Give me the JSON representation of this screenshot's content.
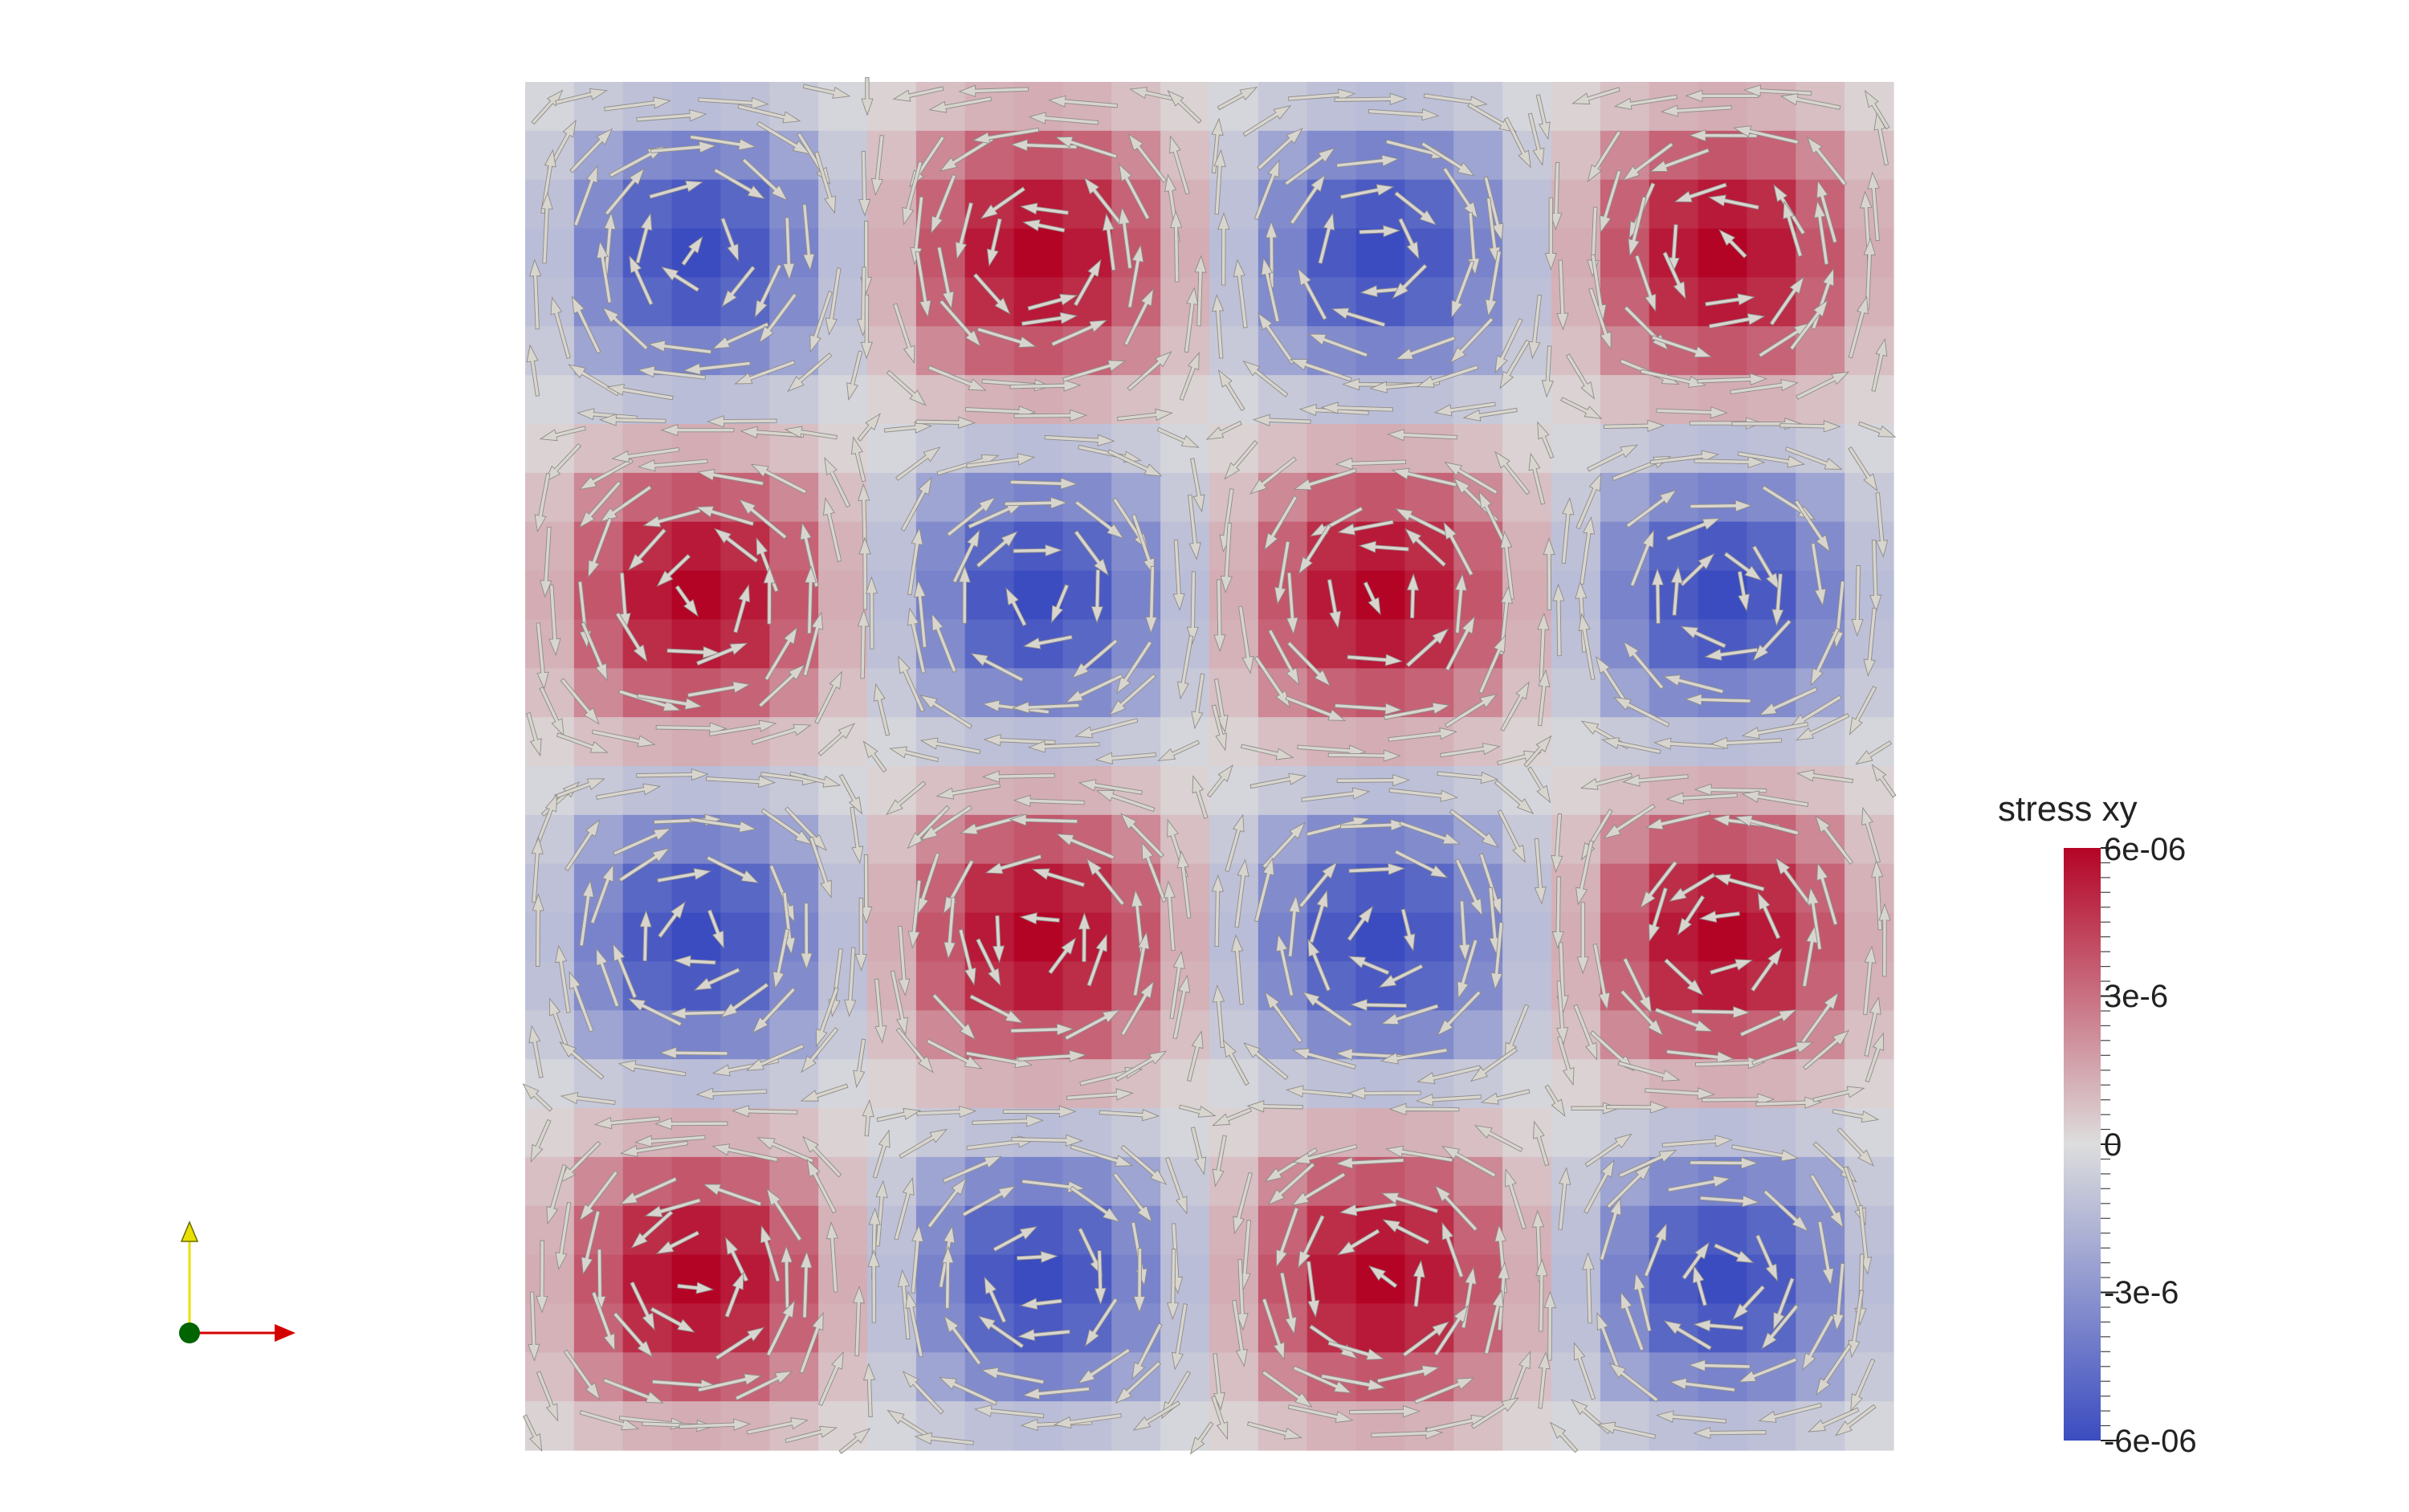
{
  "chart_data": {
    "type": "heatmap",
    "title": "",
    "xlabel": "",
    "ylabel": "",
    "grid": false,
    "field": {
      "grid_cells": [
        28,
        28
      ],
      "pattern": "product of sinusoids, 4 x 4 alternating cells",
      "min": -6e-06,
      "max": 6e-06
    },
    "overlay": {
      "type": "vector-glyphs",
      "glyph": "arrow",
      "color": "#d8d5cf",
      "pattern": "counter-rotating vortices, one per cell"
    },
    "colorbar": {
      "title": "stress xy",
      "placement": "right",
      "colormap": "cool-to-warm",
      "colors": [
        "#3b4cc0",
        "#dddddd",
        "#b40426"
      ],
      "ticks": [
        {
          "value": 6e-06,
          "label": "6e-06"
        },
        {
          "value": 3e-06,
          "label": "3e-6"
        },
        {
          "value": 0,
          "label": "0"
        },
        {
          "value": -3e-06,
          "label": "-3e-6"
        },
        {
          "value": -6e-06,
          "label": "-6e-06"
        }
      ]
    },
    "orientation_axes": {
      "x_color": "#d40000",
      "y_color": "#e8e000",
      "origin_color": "#006400"
    }
  }
}
